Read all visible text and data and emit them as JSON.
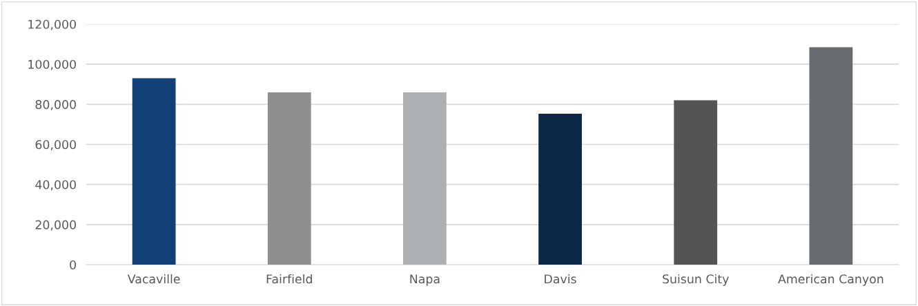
{
  "chart_data": {
    "type": "bar",
    "categories": [
      "Vacaville",
      "Fairfield",
      "Napa",
      "Davis",
      "Suisun City",
      "American Canyon"
    ],
    "values": [
      93000,
      86000,
      86000,
      75300,
      82000,
      108500
    ],
    "colors": [
      "#124177",
      "#8e8e8e",
      "#adb0b3",
      "#0c2848",
      "#545454",
      "#686c70"
    ],
    "ylim": [
      0,
      120000
    ],
    "yticks": [
      {
        "value": 0,
        "label": "0"
      },
      {
        "value": 20000,
        "label": "20,000"
      },
      {
        "value": 40000,
        "label": "40,000"
      },
      {
        "value": 60000,
        "label": "60,000"
      },
      {
        "value": 80000,
        "label": "80,000"
      },
      {
        "value": 100000,
        "label": "100,000"
      },
      {
        "value": 120000,
        "label": "120,000"
      }
    ],
    "grid": "y"
  }
}
